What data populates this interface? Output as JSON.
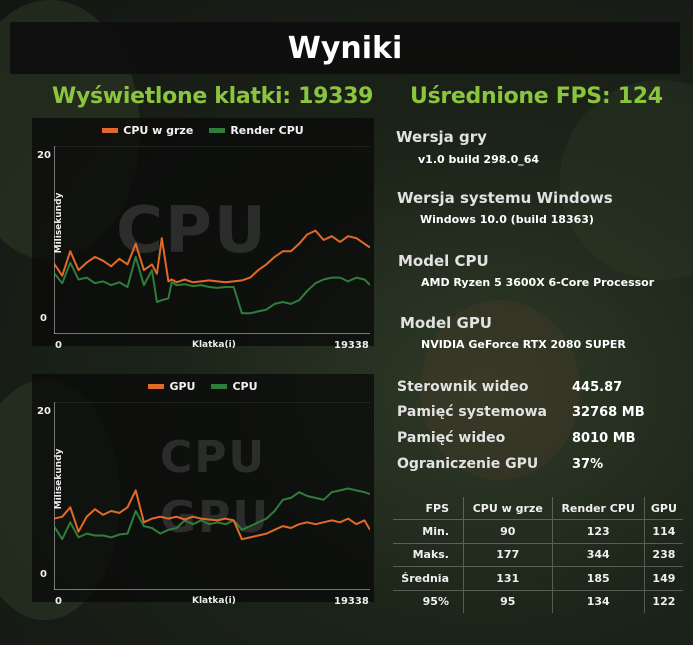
{
  "title": "Wyniki",
  "frames_stat": "Wyświetlone klatki: 19339",
  "fps_stat": "Uśrednione FPS: 124",
  "colors": {
    "accent_green": "#8bc43f",
    "series_orange": "#e06a2a",
    "series_green": "#2f7d3a"
  },
  "chart_data": [
    {
      "type": "line",
      "legend": [
        "CPU w grze",
        "Render CPU"
      ],
      "watermark": "CPU",
      "ylabel": "Milisekundy",
      "xlabel": "Klatka(i)",
      "y_ticks": [
        "20",
        "0"
      ],
      "x_ticks": [
        "0",
        "19338"
      ],
      "ylim": [
        0,
        20
      ],
      "xlim": [
        0,
        19338
      ],
      "series": [
        {
          "name": "CPU w grze",
          "color": "#e06a2a",
          "x": [
            0,
            500,
            1000,
            1500,
            2000,
            2500,
            3000,
            3500,
            4000,
            4500,
            5000,
            5500,
            6000,
            6300,
            6600,
            7000,
            7200,
            7500,
            8000,
            8500,
            9000,
            9500,
            10000,
            10500,
            11000,
            11500,
            12000,
            12500,
            13000,
            13500,
            14000,
            14500,
            15000,
            15500,
            16000,
            16500,
            17000,
            17500,
            18000,
            18500,
            19000,
            19338
          ],
          "values": [
            7.5,
            6.2,
            8.8,
            6.8,
            7.6,
            8.2,
            7.8,
            7.2,
            8.0,
            7.4,
            9.6,
            6.8,
            7.4,
            6.4,
            10.2,
            5.6,
            5.8,
            5.5,
            5.8,
            5.5,
            5.6,
            5.7,
            5.6,
            5.5,
            5.6,
            5.7,
            6.0,
            6.8,
            7.4,
            8.2,
            8.8,
            8.8,
            9.6,
            10.6,
            11.0,
            10.0,
            10.4,
            9.8,
            10.4,
            10.2,
            9.6,
            9.2
          ]
        },
        {
          "name": "Render CPU",
          "color": "#2f7d3a",
          "x": [
            0,
            500,
            1000,
            1500,
            2000,
            2500,
            3000,
            3500,
            4000,
            4500,
            5000,
            5500,
            6000,
            6300,
            6600,
            7000,
            7200,
            7500,
            8000,
            8500,
            9000,
            9500,
            10000,
            10500,
            11000,
            11500,
            12000,
            12500,
            13000,
            13500,
            14000,
            14500,
            15000,
            15500,
            16000,
            16500,
            17000,
            17500,
            18000,
            18500,
            19000,
            19338
          ],
          "values": [
            6.5,
            5.4,
            7.6,
            5.8,
            6.0,
            5.4,
            5.6,
            5.2,
            5.5,
            5.0,
            8.2,
            5.2,
            6.8,
            3.4,
            3.6,
            3.8,
            5.5,
            5.2,
            5.3,
            5.1,
            5.2,
            5.0,
            4.9,
            5.0,
            5.0,
            2.2,
            2.2,
            2.4,
            2.6,
            3.2,
            3.4,
            3.2,
            3.6,
            4.6,
            5.4,
            5.8,
            6.0,
            6.0,
            5.6,
            6.0,
            5.8,
            5.2
          ]
        }
      ]
    },
    {
      "type": "line",
      "legend": [
        "GPU",
        "CPU"
      ],
      "watermark": "CPU",
      "watermark2": "GPU",
      "ylabel": "Milisekundy",
      "xlabel": "Klatka(i)",
      "y_ticks": [
        "20",
        "0"
      ],
      "x_ticks": [
        "0",
        "19338"
      ],
      "ylim": [
        0,
        20
      ],
      "xlim": [
        0,
        19338
      ],
      "series": [
        {
          "name": "GPU",
          "color": "#e06a2a",
          "x": [
            0,
            500,
            1000,
            1500,
            2000,
            2500,
            3000,
            3500,
            4000,
            4500,
            5000,
            5500,
            6000,
            6500,
            7000,
            7500,
            8000,
            8500,
            9000,
            9500,
            10000,
            10500,
            11000,
            11500,
            12000,
            12500,
            13000,
            13500,
            14000,
            14500,
            15000,
            15500,
            16000,
            16500,
            17000,
            17500,
            18000,
            18500,
            19000,
            19338
          ],
          "values": [
            7.6,
            7.8,
            8.8,
            6.2,
            7.8,
            8.6,
            8.0,
            8.4,
            8.2,
            8.8,
            10.6,
            7.2,
            7.6,
            7.8,
            7.6,
            7.8,
            7.5,
            7.8,
            7.6,
            7.5,
            7.4,
            7.6,
            7.4,
            5.4,
            5.6,
            5.8,
            6.0,
            6.4,
            6.8,
            6.6,
            7.0,
            7.2,
            7.0,
            7.2,
            7.4,
            7.2,
            7.6,
            7.0,
            7.4,
            6.4
          ]
        },
        {
          "name": "CPU",
          "color": "#2f7d3a",
          "x": [
            0,
            500,
            1000,
            1500,
            2000,
            2500,
            3000,
            3500,
            4000,
            4500,
            5000,
            5500,
            6000,
            6500,
            7000,
            7500,
            8000,
            8500,
            9000,
            9500,
            10000,
            10500,
            11000,
            11500,
            12000,
            12500,
            13000,
            13500,
            14000,
            14500,
            15000,
            15500,
            16000,
            16500,
            17000,
            17500,
            18000,
            18500,
            19000,
            19338
          ],
          "values": [
            6.8,
            5.4,
            7.2,
            5.6,
            6.0,
            5.8,
            5.8,
            5.6,
            5.9,
            6.0,
            8.4,
            6.8,
            6.6,
            6.0,
            6.4,
            6.6,
            7.4,
            7.0,
            7.4,
            7.0,
            7.2,
            7.0,
            7.4,
            6.4,
            6.8,
            7.2,
            7.6,
            8.4,
            9.6,
            9.8,
            10.4,
            10.0,
            9.8,
            9.6,
            10.4,
            10.6,
            10.8,
            10.6,
            10.4,
            10.2
          ]
        }
      ]
    }
  ],
  "info": [
    {
      "label": "Wersja gry",
      "value": "v1.0 build 298.0_64"
    },
    {
      "label": "Wersja systemu Windows",
      "value": "Windows 10.0 (build 18363)"
    },
    {
      "label": "Model CPU",
      "value": "AMD Ryzen 5 3600X 6-Core Processor"
    },
    {
      "label": "Model GPU",
      "value": "NVIDIA GeForce RTX 2080 SUPER"
    }
  ],
  "specs": [
    {
      "label": "Sterownik wideo",
      "value": "445.87"
    },
    {
      "label": "Pamięć systemowa",
      "value": "32768 MB"
    },
    {
      "label": "Pamięć wideo",
      "value": "8010 MB"
    },
    {
      "label": "Ograniczenie GPU",
      "value": "37%"
    }
  ],
  "table": {
    "headers": [
      "FPS",
      "CPU w grze",
      "Render CPU",
      "GPU"
    ],
    "rows": [
      [
        "Min.",
        "90",
        "123",
        "114"
      ],
      [
        "Maks.",
        "177",
        "344",
        "238"
      ],
      [
        "Średnia",
        "131",
        "185",
        "149"
      ],
      [
        "95%",
        "95",
        "134",
        "122"
      ]
    ]
  }
}
